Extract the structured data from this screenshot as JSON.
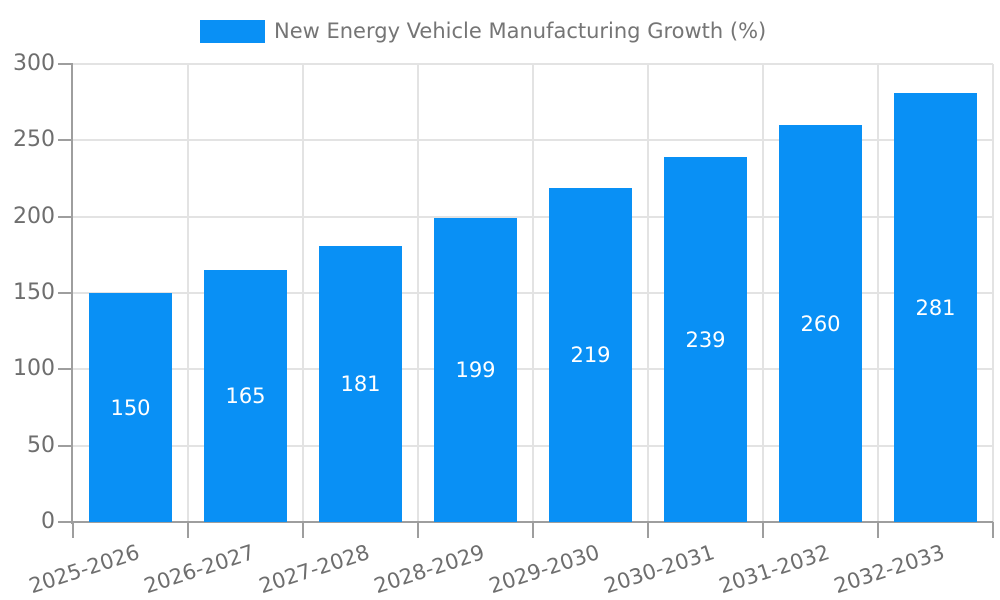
{
  "chart_data": {
    "type": "bar",
    "title": "",
    "categories": [
      "2025-2026",
      "2026-2027",
      "2027-2028",
      "2028-2029",
      "2029-2030",
      "2030-2031",
      "2031-2032",
      "2032-2033"
    ],
    "series": [
      {
        "name": "New Energy Vehicle Manufacturing Growth (%)",
        "values": [
          150,
          165,
          181,
          199,
          219,
          239,
          260,
          281
        ]
      }
    ],
    "xlabel": "",
    "ylabel": "",
    "ylim": [
      0,
      300
    ],
    "yticks": [
      0,
      50,
      100,
      150,
      200,
      250,
      300
    ],
    "grid": true,
    "legend_position": "top",
    "x_label_rotation_deg": -18,
    "value_labels_inside": true,
    "colors": {
      "bar": "#0990F5",
      "grid": "#E3E3E3",
      "axis": "#9E9E9E",
      "tick_label": "#6E6E6E",
      "legend_text": "#757575",
      "value_label": "#FFFFFF",
      "background": "#FFFFFF"
    }
  }
}
